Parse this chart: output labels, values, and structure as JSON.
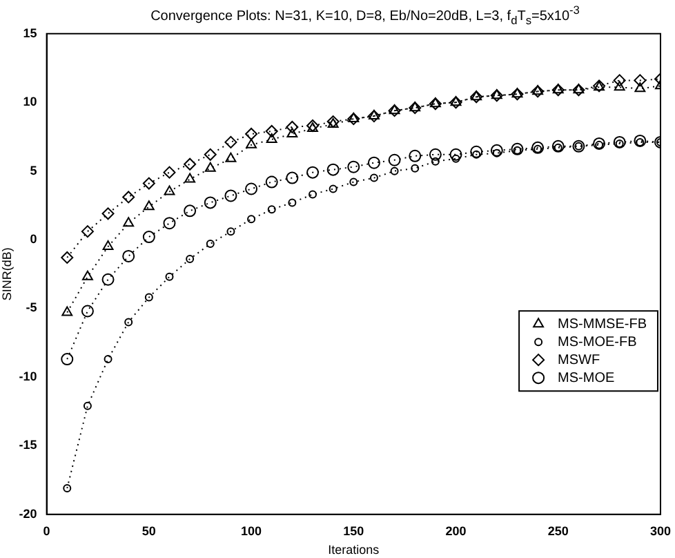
{
  "chart_data": {
    "type": "line",
    "title": "Convergence Plots: N=31, K=10, D=8, Eb/No=20dB, L=3, f$_{d}$T$_{s}$=5x10$^{-3}$",
    "xlabel": "Iterations",
    "ylabel": "SINR(dB)",
    "x": [
      10,
      20,
      30,
      40,
      50,
      60,
      70,
      80,
      90,
      100,
      110,
      120,
      130,
      140,
      150,
      160,
      170,
      180,
      190,
      200,
      210,
      220,
      230,
      240,
      250,
      260,
      270,
      280,
      290,
      300
    ],
    "xlim": [
      0,
      300
    ],
    "xticks": [
      0,
      50,
      100,
      150,
      200,
      250,
      300
    ],
    "ylim": [
      -20,
      15
    ],
    "yticks": [
      -20,
      -15,
      -10,
      -5,
      0,
      5,
      10,
      15
    ],
    "grid": false,
    "legend": "right",
    "line_style": "dotted",
    "series": [
      {
        "name": "MS-MMSE-FB",
        "color": "#000000",
        "marker": "triangle",
        "values": [
          -5.3,
          -2.7,
          -0.5,
          1.2,
          2.4,
          3.5,
          4.4,
          5.2,
          5.9,
          6.9,
          7.3,
          7.7,
          8.1,
          8.4,
          8.8,
          9.0,
          9.4,
          9.6,
          9.9,
          10.0,
          10.4,
          10.5,
          10.6,
          10.8,
          10.9,
          10.9,
          11.1,
          11.1,
          11.0,
          11.2
        ]
      },
      {
        "name": "MS-MOE-FB",
        "color": "#000000",
        "marker": "circle",
        "values": [
          -18.1,
          -12.1,
          -8.7,
          -6.0,
          -4.2,
          -2.7,
          -1.4,
          -0.3,
          0.6,
          1.5,
          2.2,
          2.7,
          3.3,
          3.7,
          4.2,
          4.5,
          5.0,
          5.2,
          5.7,
          5.9,
          6.2,
          6.3,
          6.5,
          6.6,
          6.7,
          6.8,
          6.9,
          7.0,
          7.1,
          7.1
        ]
      },
      {
        "name": "MSWF",
        "color": "#000000",
        "marker": "diamond",
        "values": [
          -1.3,
          0.6,
          1.9,
          3.1,
          4.1,
          4.9,
          5.5,
          6.2,
          7.1,
          7.7,
          7.9,
          8.2,
          8.3,
          8.6,
          8.8,
          9.0,
          9.4,
          9.6,
          9.9,
          10.0,
          10.4,
          10.5,
          10.6,
          10.8,
          10.9,
          10.9,
          11.2,
          11.6,
          11.6,
          11.7
        ]
      },
      {
        "name": "MS-MOE",
        "color": "#000000",
        "marker": "circle",
        "values": [
          -8.7,
          -5.2,
          -2.9,
          -1.2,
          0.2,
          1.2,
          2.1,
          2.7,
          3.2,
          3.7,
          4.2,
          4.5,
          4.9,
          5.1,
          5.3,
          5.6,
          5.8,
          6.1,
          6.2,
          6.2,
          6.4,
          6.5,
          6.6,
          6.7,
          6.8,
          6.8,
          7.0,
          7.1,
          7.2,
          7.1
        ]
      }
    ]
  }
}
